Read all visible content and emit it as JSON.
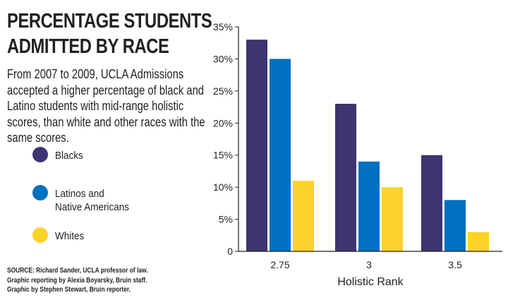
{
  "title_lines": [
    "PERCENTAGE STUDENTS",
    "ADMITTED BY RACE"
  ],
  "subtitle": "From 2007 to 2009, UCLA Admissions accepted a higher percentage of black and Latino students with mid-range holistic scores, than white and other races with the same scores.",
  "source_lines": [
    "SOURCE: Richard Sander, UCLA professor of law.",
    "Graphic reporting by Alexia Boyarsky, Bruin staff.",
    "Graphic by Stephen Stewart, Bruin reporter."
  ],
  "colors": {
    "blacks": "#3e3470",
    "latinos": "#0070c0",
    "whites": "#fdd22a",
    "axis": "#231f20"
  },
  "chart_data": {
    "type": "bar",
    "title": "PERCENTAGE STUDENTS ADMITTED BY RACE",
    "xlabel": "Holistic Rank",
    "ylabel": "",
    "categories": [
      "2.75",
      "3",
      "3.5"
    ],
    "series": [
      {
        "name": "Blacks",
        "values": [
          33,
          23,
          15
        ],
        "color_key": "blacks"
      },
      {
        "name": "Latinos and Native Americans",
        "values": [
          30,
          14,
          8
        ],
        "color_key": "latinos"
      },
      {
        "name": "Whites",
        "values": [
          11,
          10,
          3
        ],
        "color_key": "whites"
      }
    ],
    "ylim": [
      0,
      35
    ],
    "yticks": [
      0,
      5,
      10,
      15,
      20,
      25,
      30,
      35
    ],
    "ytick_labels": [
      "0",
      "5%",
      "10%",
      "15%",
      "20%",
      "25%",
      "30%",
      "35%"
    ],
    "grid": false,
    "legend": "left"
  }
}
